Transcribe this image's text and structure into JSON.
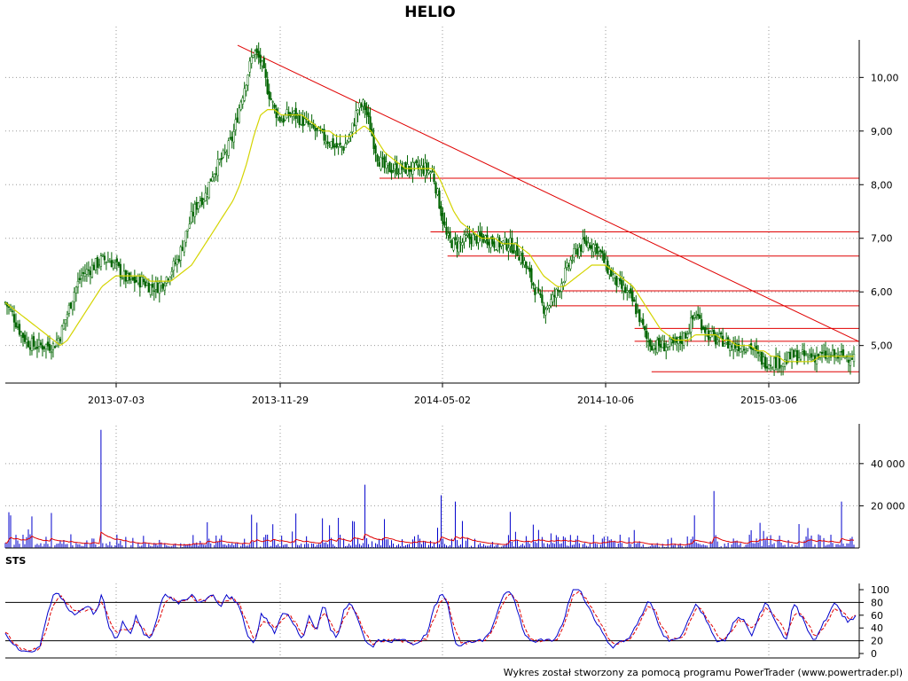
{
  "chart_data": [
    {
      "type": "candlestick",
      "title": "HELIO",
      "x_tick_labels": [
        "2013-07-03",
        "2013-11-29",
        "2014-05-02",
        "2014-10-06",
        "2015-03-06"
      ],
      "y_tick_labels": [
        "5,00",
        "6,00",
        "7,00",
        "8,00",
        "9,00",
        "10,00"
      ],
      "y_ticks": [
        5,
        6,
        7,
        8,
        9,
        10
      ],
      "ylim": [
        4.3,
        10.7
      ],
      "grid": true,
      "close_series": [
        5.8,
        5.6,
        5.3,
        5.1,
        5.0,
        5.0,
        5.0,
        5.0,
        5.2,
        5.6,
        6.0,
        6.3,
        6.4,
        6.5,
        6.6,
        6.6,
        6.5,
        6.3,
        6.2,
        6.2,
        6.2,
        6.1,
        6.1,
        6.2,
        6.4,
        6.6,
        7.0,
        7.4,
        7.7,
        7.8,
        8.2,
        8.4,
        8.6,
        8.9,
        9.5,
        10.0,
        10.5,
        10.3,
        9.8,
        9.4,
        9.2,
        9.3,
        9.3,
        9.2,
        9.1,
        9.0,
        8.9,
        8.8,
        8.7,
        8.7,
        8.9,
        9.4,
        9.5,
        9.0,
        8.5,
        8.3,
        8.3,
        8.3,
        8.3,
        8.3,
        8.3,
        8.3,
        8.2,
        7.6,
        7.0,
        6.9,
        6.9,
        7.0,
        7.0,
        7.0,
        7.0,
        6.9,
        6.9,
        6.9,
        6.8,
        6.6,
        6.3,
        6.0,
        5.7,
        5.8,
        6.0,
        6.3,
        6.6,
        6.8,
        6.9,
        6.9,
        6.8,
        6.5,
        6.3,
        6.1,
        6.0,
        5.8,
        5.5,
        5.1,
        5.0,
        5.0,
        5.0,
        5.0,
        5.1,
        5.3,
        5.6,
        5.4,
        5.2,
        5.1,
        5.1,
        5.0,
        5.0,
        5.0,
        5.0,
        4.8,
        4.7,
        4.7,
        4.7,
        4.7,
        4.8,
        4.8,
        4.8,
        4.8,
        4.8,
        4.8,
        4.8,
        4.8,
        4.8,
        4.8
      ],
      "ma_series": [
        5.8,
        5.7,
        5.6,
        5.5,
        5.4,
        5.3,
        5.2,
        5.1,
        5.0,
        5.1,
        5.3,
        5.5,
        5.7,
        5.9,
        6.1,
        6.2,
        6.3,
        6.3,
        6.3,
        6.3,
        6.3,
        6.2,
        6.2,
        6.2,
        6.2,
        6.3,
        6.4,
        6.5,
        6.7,
        6.9,
        7.1,
        7.3,
        7.5,
        7.7,
        8.0,
        8.4,
        8.9,
        9.3,
        9.4,
        9.4,
        9.3,
        9.3,
        9.3,
        9.3,
        9.2,
        9.1,
        9.0,
        9.0,
        8.9,
        8.9,
        8.9,
        9.0,
        9.1,
        9.0,
        8.8,
        8.6,
        8.5,
        8.4,
        8.3,
        8.3,
        8.3,
        8.3,
        8.3,
        8.1,
        7.8,
        7.5,
        7.3,
        7.2,
        7.1,
        7.0,
        7.0,
        7.0,
        6.9,
        6.9,
        6.9,
        6.8,
        6.7,
        6.5,
        6.3,
        6.2,
        6.1,
        6.1,
        6.2,
        6.3,
        6.4,
        6.5,
        6.5,
        6.5,
        6.4,
        6.3,
        6.2,
        6.1,
        5.9,
        5.7,
        5.5,
        5.3,
        5.2,
        5.1,
        5.1,
        5.1,
        5.2,
        5.2,
        5.2,
        5.2,
        5.1,
        5.1,
        5.0,
        5.0,
        5.0,
        4.9,
        4.9,
        4.8,
        4.8,
        4.7,
        4.7,
        4.7,
        4.7,
        4.7,
        4.8,
        4.8,
        4.8,
        4.8,
        4.8,
        4.8
      ],
      "trendline": [
        [
          10.6,
          0.0
        ],
        [
          5.08,
          1.0
        ]
      ],
      "support_levels": [
        {
          "y": 8.12,
          "from": 0.44
        },
        {
          "y": 7.12,
          "from": 0.5
        },
        {
          "y": 6.67,
          "from": 0.52
        },
        {
          "y": 6.02,
          "from": 0.62
        },
        {
          "y": 5.74,
          "from": 0.64
        },
        {
          "y": 5.32,
          "from": 0.74
        },
        {
          "y": 5.08,
          "from": 0.74
        },
        {
          "y": 4.51,
          "from": 0.76
        }
      ],
      "colors": {
        "candle": "#006400",
        "ma": "#d4d400",
        "trendline": "#e00000",
        "support": "#e00000"
      }
    },
    {
      "type": "bar",
      "title": "",
      "y_ticks": [
        20000,
        40000
      ],
      "y_tick_labels": [
        "20 000",
        "40 000"
      ],
      "ylim": [
        0,
        58000
      ],
      "spikes": [
        {
          "at": 0.113,
          "value": 56000
        },
        {
          "at": 0.424,
          "value": 30000
        },
        {
          "at": 0.514,
          "value": 25000
        },
        {
          "at": 0.531,
          "value": 22000
        },
        {
          "at": 0.835,
          "value": 27000
        },
        {
          "at": 0.985,
          "value": 22000
        }
      ],
      "colors": {
        "bar": "#0000cc",
        "avg": "#e00000"
      }
    },
    {
      "type": "line",
      "title": "STS",
      "y_ticks": [
        0,
        20,
        40,
        60,
        80,
        100
      ],
      "y_tick_labels": [
        "0",
        "20",
        "40",
        "60",
        "80",
        "100"
      ],
      "ylim": [
        0,
        100
      ],
      "reference_lines": [
        20,
        80
      ],
      "series": [
        {
          "values": [
            30,
            15,
            5,
            5,
            5,
            10,
            60,
            95,
            90,
            70,
            60,
            70,
            75,
            60,
            95,
            40,
            20,
            50,
            30,
            60,
            30,
            20,
            60,
            95,
            85,
            80,
            85,
            90,
            80,
            85,
            95,
            70,
            90,
            85,
            70,
            30,
            15,
            60,
            50,
            30,
            65,
            60,
            40,
            20,
            60,
            30,
            80,
            40,
            20,
            70,
            80,
            55,
            20,
            10,
            20,
            20,
            20,
            20,
            20,
            15,
            20,
            30,
            70,
            95,
            80,
            20,
            10,
            20,
            20,
            20,
            30,
            60,
            90,
            100,
            70,
            30,
            20,
            20,
            20,
            20,
            30,
            60,
            100,
            100,
            80,
            60,
            40,
            20,
            10,
            20,
            20,
            40,
            60,
            85,
            60,
            30,
            20,
            20,
            30,
            60,
            80,
            60,
            40,
            20,
            20,
            40,
            60,
            50,
            30,
            60,
            80,
            60,
            40,
            20,
            80,
            60,
            40,
            20,
            40,
            60,
            80,
            60,
            50,
            60
          ]
        },
        {
          "values": [
            35,
            20,
            10,
            6,
            5,
            8,
            40,
            80,
            90,
            78,
            65,
            68,
            70,
            65,
            80,
            55,
            30,
            40,
            35,
            50,
            38,
            25,
            45,
            80,
            88,
            82,
            84,
            88,
            82,
            84,
            90,
            78,
            85,
            86,
            75,
            45,
            22,
            45,
            52,
            38,
            55,
            60,
            48,
            28,
            48,
            38,
            65,
            50,
            28,
            55,
            75,
            62,
            32,
            15,
            18,
            20,
            20,
            20,
            20,
            17,
            18,
            25,
            55,
            85,
            85,
            35,
            15,
            18,
            20,
            20,
            25,
            50,
            80,
            95,
            82,
            45,
            25,
            20,
            20,
            20,
            25,
            50,
            88,
            98,
            88,
            68,
            48,
            28,
            15,
            18,
            20,
            32,
            52,
            75,
            68,
            40,
            25,
            20,
            25,
            50,
            72,
            65,
            48,
            28,
            22,
            32,
            52,
            52,
            38,
            50,
            72,
            65,
            48,
            28,
            60,
            65,
            48,
            28,
            35,
            52,
            72,
            65,
            55,
            58
          ]
        }
      ],
      "colors": {
        "k": "#0000cc",
        "d": "#e00000",
        "ref": "#000000"
      }
    }
  ],
  "footer": {
    "credit": "Wykres został stworzony za pomocą programu PowerTrader (www.powertrader.pl)"
  }
}
